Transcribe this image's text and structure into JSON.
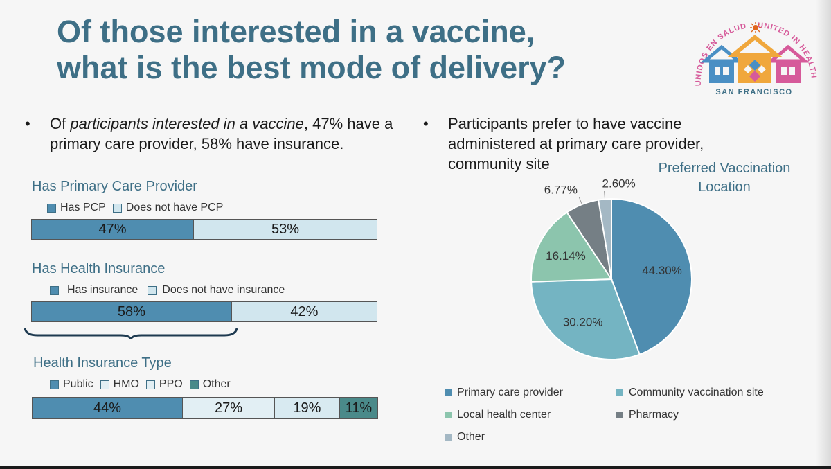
{
  "title": {
    "line1": "Of those interested in a vaccine,",
    "line2": "what is the best mode of delivery?"
  },
  "logo": {
    "text_left": "UNIDOS EN SALUD",
    "text_right": "UNITED IN HEALTH",
    "text_bottom": "SAN FRANCISCO",
    "colors": [
      "#4a8fc4",
      "#f0a73c",
      "#d65a9a",
      "#e0651c"
    ]
  },
  "bullets": {
    "left": {
      "dot": "•",
      "part1": "Of ",
      "italic": "participants interested in a vaccine",
      "part2": ", 47% have a primary care provider, 58% have insurance."
    },
    "right": {
      "dot": "•",
      "text": "Participants prefer to have vaccine administered at primary care provider, community site"
    }
  },
  "colors": {
    "dark": "#4f8db0",
    "light": "#d1e6ee",
    "teal_dark": "#4a8a8a",
    "title": "#3e6f86",
    "pie_primary": "#4f8db0",
    "pie_community": "#74b4c2",
    "pie_local": "#8cc5ad",
    "pie_pharmacy": "#757f85",
    "pie_other": "#a4b8c4"
  },
  "chart_data": [
    {
      "type": "bar",
      "title": "Has Primary Care Provider",
      "series": [
        {
          "name": "Has PCP",
          "value": 47,
          "label": "47%"
        },
        {
          "name": "Does not have PCP",
          "value": 53,
          "label": "53%"
        }
      ]
    },
    {
      "type": "bar",
      "title": "Has Health Insurance",
      "series": [
        {
          "name": "Has insurance",
          "value": 58,
          "label": "58%"
        },
        {
          "name": "Does not have insurance",
          "value": 42,
          "label": "42%"
        }
      ]
    },
    {
      "type": "bar",
      "title": "Health Insurance Type",
      "series": [
        {
          "name": "Public",
          "value": 44,
          "label": "44%"
        },
        {
          "name": "HMO",
          "value": 27,
          "label": "27%"
        },
        {
          "name": "PPO",
          "value": 19,
          "label": "19%"
        },
        {
          "name": "Other",
          "value": 11,
          "label": "11%"
        }
      ]
    },
    {
      "type": "pie",
      "title": "Preferred Vaccination Location",
      "slices": [
        {
          "name": "Primary care provider",
          "value": 44.3,
          "label": "44.30%"
        },
        {
          "name": "Community vaccination site",
          "value": 30.2,
          "label": "30.20%"
        },
        {
          "name": "Local health center",
          "value": 16.14,
          "label": "16.14%"
        },
        {
          "name": "Pharmacy",
          "value": 6.77,
          "label": "6.77%"
        },
        {
          "name": "Other",
          "value": 2.6,
          "label": "2.60%"
        }
      ],
      "legend_position": "bottom"
    }
  ]
}
